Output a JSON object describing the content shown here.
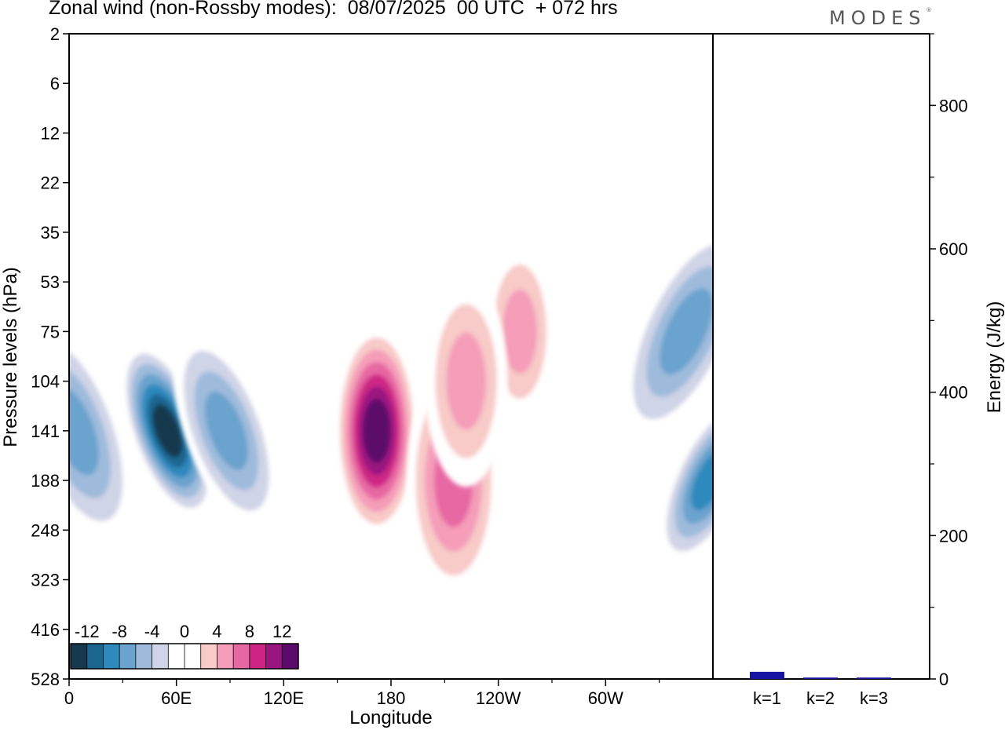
{
  "title": "Zonal wind (non-Rossby modes):  08/07/2025  00 UTC  + 072 hrs",
  "brand": "MODES",
  "brand_mark": "®",
  "chart_data": [
    {
      "type": "heatmap",
      "title": "Zonal wind (non-Rossby modes):  08/07/2025  00 UTC  + 072 hrs",
      "xlabel": "Longitude",
      "ylabel": "Pressure levels (hPa)",
      "x_ticks": [
        "0",
        "60E",
        "120E",
        "180",
        "120W",
        "60W"
      ],
      "y_ticks": [
        "2",
        "6",
        "12",
        "22",
        "35",
        "53",
        "75",
        "104",
        "141",
        "188",
        "248",
        "323",
        "416",
        "528"
      ],
      "colorbar": {
        "labels": [
          "-12",
          "-8",
          "-4",
          "0",
          "4",
          "8",
          "12"
        ],
        "levels": [
          -14,
          -12,
          -10,
          -8,
          -6,
          -4,
          -2,
          0,
          2,
          4,
          6,
          8,
          10,
          12,
          14
        ],
        "colors": [
          "#16394d",
          "#1a6691",
          "#2e89bd",
          "#6aa3cd",
          "#9fbbdc",
          "#d0d4e7",
          "#ffffff",
          "#ffffff",
          "#f8cac8",
          "#f59db9",
          "#e767a2",
          "#cd2585",
          "#9a1580",
          "#5c0a6b"
        ]
      },
      "features": [
        {
          "lon": 55,
          "level": "141",
          "value": -14
        },
        {
          "lon": 88,
          "level": "141",
          "value": -8
        },
        {
          "lon": 3,
          "level": "141",
          "value": -8
        },
        {
          "lon": 358,
          "level": "188",
          "value": -10
        },
        {
          "lon": 172,
          "level": "141",
          "value": 13
        },
        {
          "lon": 215,
          "level": "188",
          "value": 8
        },
        {
          "lon": 252,
          "level": "75",
          "value": 6
        },
        {
          "lon": 222,
          "level": "104",
          "value": 5
        },
        {
          "lon": 345,
          "level": "75",
          "value": -8
        }
      ]
    },
    {
      "type": "bar",
      "categories": [
        "k=1",
        "k=2",
        "k=3"
      ],
      "values": [
        10,
        2,
        2
      ],
      "ylabel": "Energy (J/kg)",
      "ylim": [
        0,
        900
      ],
      "y_ticks": [
        0,
        200,
        400,
        600,
        800
      ],
      "bar_color": "#1414a0"
    }
  ]
}
